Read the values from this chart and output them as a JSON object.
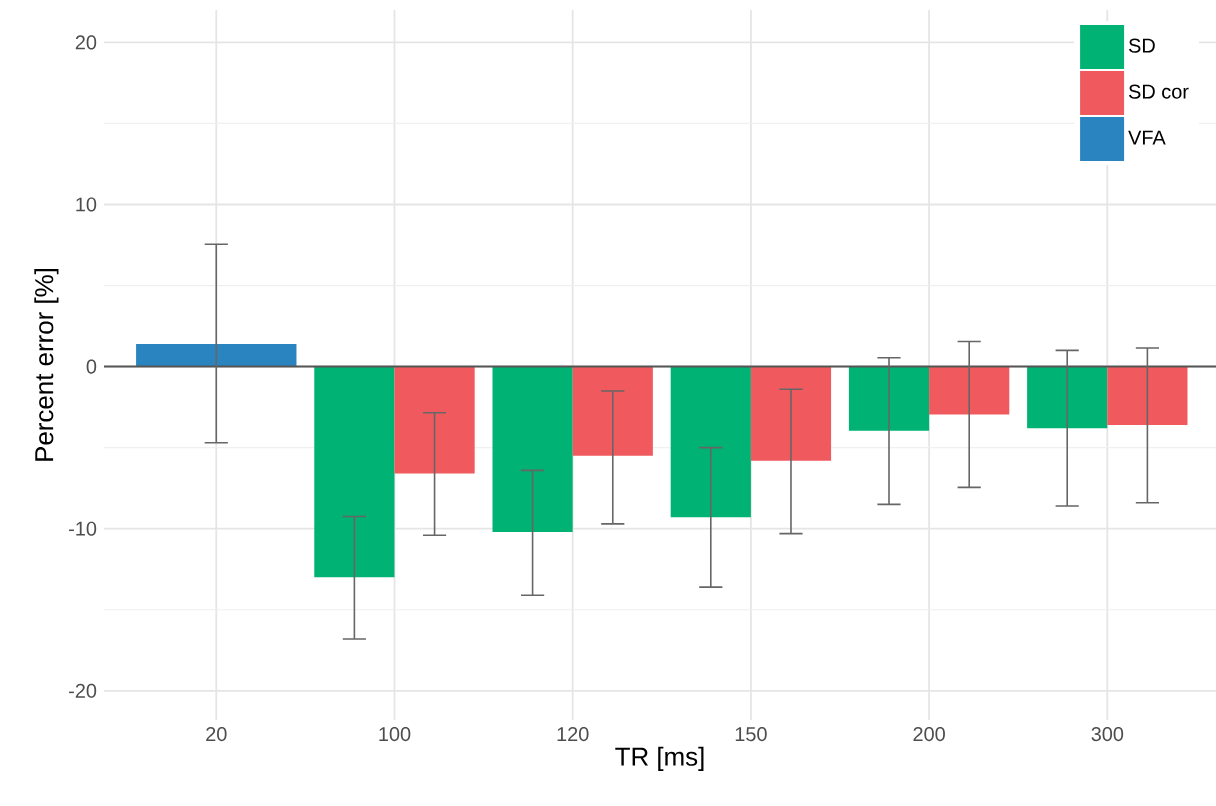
{
  "chart_data": {
    "type": "bar",
    "xlabel": "TR [ms]",
    "ylabel": "Percent error [%]",
    "categories": [
      "20",
      "100",
      "120",
      "150",
      "200",
      "300"
    ],
    "series": [
      {
        "name": "SD",
        "color": "#00b274",
        "values": [
          null,
          -13.0,
          -10.2,
          -9.3,
          -3.95,
          -3.8
        ],
        "errors": [
          null,
          [
            -16.8,
            -9.25
          ],
          [
            -14.1,
            -6.4
          ],
          [
            -13.6,
            -5.0
          ],
          [
            -8.5,
            0.55
          ],
          [
            -8.6,
            1.0
          ]
        ]
      },
      {
        "name": "SD cor",
        "color": "#f05a5f",
        "values": [
          null,
          -6.6,
          -5.5,
          -5.8,
          -2.95,
          -3.6
        ],
        "errors": [
          null,
          [
            -10.4,
            -2.85
          ],
          [
            -9.7,
            -1.5
          ],
          [
            -10.3,
            -1.4
          ],
          [
            -7.45,
            1.55
          ],
          [
            -8.4,
            1.15
          ]
        ]
      },
      {
        "name": "VFA",
        "color": "#2a84c0",
        "values": [
          1.4,
          null,
          null,
          null,
          null,
          null
        ],
        "errors": [
          [
            -4.7,
            7.55
          ],
          null,
          null,
          null,
          null,
          null
        ]
      }
    ],
    "ylim": [
      -21.8,
      22
    ],
    "yticks": [
      -20,
      -10,
      0,
      10,
      20
    ],
    "grid": true,
    "legend": "top right",
    "ref_lines": [
      {
        "axis": "y",
        "value": 0,
        "color": "#555555"
      }
    ]
  }
}
